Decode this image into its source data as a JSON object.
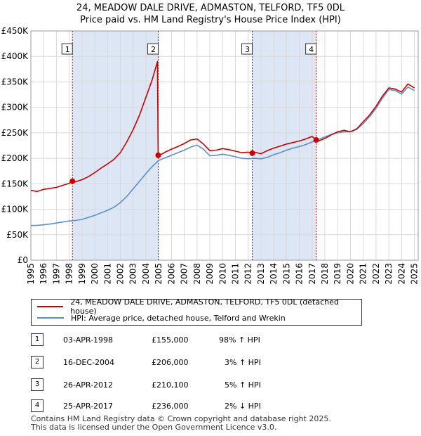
{
  "title_line1": "24, MEADOW DALE DRIVE, ADMASTON, TELFORD, TF5 0DL",
  "title_line2": "Price paid vs. HM Land Registry's House Price Index (HPI)",
  "colors": {
    "property": "#cc0000",
    "hpi": "#5b8fd0",
    "shade": "#dde6f5",
    "grid": "#d9d9d9",
    "vline": "#cc0000"
  },
  "chart_data": {
    "type": "line",
    "title": "Price paid vs. HM Land Registry's House Price Index (HPI)",
    "xlabel": "",
    "ylabel": "",
    "xlim": [
      1995,
      2025.3
    ],
    "ylim": [
      0,
      450000
    ],
    "x_ticks": [
      1995,
      1996,
      1997,
      1998,
      1999,
      2000,
      2001,
      2002,
      2003,
      2004,
      2005,
      2006,
      2007,
      2008,
      2009,
      2010,
      2011,
      2012,
      2013,
      2014,
      2015,
      2016,
      2017,
      2018,
      2019,
      2020,
      2021,
      2022,
      2023,
      2024,
      2025
    ],
    "y_ticks": [
      0,
      50000,
      100000,
      150000,
      200000,
      250000,
      300000,
      350000,
      400000,
      450000
    ],
    "y_tick_labels": [
      "£0",
      "£50K",
      "£100K",
      "£150K",
      "£200K",
      "£250K",
      "£300K",
      "£350K",
      "£400K",
      "£450K"
    ],
    "shaded_spans": [
      [
        1998.25,
        2004.96
      ],
      [
        2012.32,
        2017.32
      ]
    ],
    "series": [
      {
        "name": "24, MEADOW DALE DRIVE, ADMASTON, TELFORD, TF5 0DL (detached house)",
        "color": "#cc0000",
        "x": [
          1995,
          1995.5,
          1996,
          1996.5,
          1997,
          1997.5,
          1998,
          1998.25,
          1998.5,
          1999,
          1999.5,
          2000,
          2000.5,
          2001,
          2001.5,
          2002,
          2002.5,
          2003,
          2003.5,
          2004,
          2004.5,
          2004.9,
          2004.96,
          2005,
          2005.5,
          2006,
          2006.5,
          2007,
          2007.5,
          2008,
          2008.5,
          2009,
          2009.5,
          2010,
          2010.5,
          2011,
          2011.5,
          2012,
          2012.32,
          2012.5,
          2013,
          2013.5,
          2014,
          2014.5,
          2015,
          2015.5,
          2016,
          2016.5,
          2017,
          2017.32,
          2017.5,
          2018,
          2018.5,
          2019,
          2019.5,
          2020,
          2020.5,
          2021,
          2021.5,
          2022,
          2022.5,
          2023,
          2023.5,
          2024,
          2024.5,
          2025
        ],
        "y": [
          137000,
          135000,
          139000,
          141000,
          143000,
          147000,
          151000,
          155000,
          154000,
          158000,
          164000,
          172000,
          181000,
          189000,
          198000,
          211000,
          232000,
          256000,
          285000,
          320000,
          355000,
          390000,
          206000,
          205000,
          212000,
          218000,
          223000,
          229000,
          236000,
          238000,
          228000,
          215000,
          216000,
          219000,
          217000,
          214000,
          211000,
          212000,
          210100,
          212000,
          209000,
          215000,
          220000,
          224000,
          228000,
          231000,
          234000,
          238000,
          243000,
          236000,
          234000,
          239000,
          246000,
          252000,
          255000,
          252000,
          258000,
          272000,
          285000,
          302000,
          322000,
          338000,
          336000,
          330000,
          346000,
          338000
        ]
      },
      {
        "name": "HPI: Average price, detached house, Telford and Wrekin",
        "color": "#5b8fd0",
        "x": [
          1995,
          1995.5,
          1996,
          1996.5,
          1997,
          1997.5,
          1998,
          1998.5,
          1999,
          1999.5,
          2000,
          2000.5,
          2001,
          2001.5,
          2002,
          2002.5,
          2003,
          2003.5,
          2004,
          2004.5,
          2005,
          2005.5,
          2006,
          2006.5,
          2007,
          2007.5,
          2008,
          2008.5,
          2009,
          2009.5,
          2010,
          2010.5,
          2011,
          2011.5,
          2012,
          2012.5,
          2013,
          2013.5,
          2014,
          2014.5,
          2015,
          2015.5,
          2016,
          2016.5,
          2017,
          2017.5,
          2018,
          2018.5,
          2019,
          2019.5,
          2020,
          2020.5,
          2021,
          2021.5,
          2022,
          2022.5,
          2023,
          2023.5,
          2024,
          2024.5,
          2025
        ],
        "y": [
          68000,
          68500,
          69500,
          71000,
          73000,
          75000,
          77000,
          78000,
          80000,
          84000,
          88000,
          93000,
          98000,
          104000,
          113000,
          125000,
          140000,
          155000,
          170000,
          184000,
          196000,
          201000,
          206000,
          211000,
          216000,
          222000,
          226000,
          218000,
          205000,
          206000,
          208000,
          206000,
          203000,
          200000,
          199000,
          200000,
          199000,
          202000,
          207000,
          211000,
          216000,
          220000,
          223000,
          227000,
          232000,
          237000,
          242000,
          247000,
          250000,
          252000,
          252000,
          257000,
          268000,
          282000,
          298000,
          318000,
          335000,
          333000,
          326000,
          340000,
          333000
        ]
      }
    ],
    "sale_points": [
      {
        "x": 1998.25,
        "y": 155000
      },
      {
        "x": 2004.96,
        "y": 206000
      },
      {
        "x": 2012.32,
        "y": 210100
      },
      {
        "x": 2017.32,
        "y": 236000
      }
    ],
    "annotations": [
      {
        "label": "1",
        "x": 1998.25
      },
      {
        "label": "2",
        "x": 2004.96
      },
      {
        "label": "3",
        "x": 2012.32
      },
      {
        "label": "4",
        "x": 2017.32
      }
    ]
  },
  "legend": {
    "property_label": "24, MEADOW DALE DRIVE, ADMASTON, TELFORD, TF5 0DL (detached house)",
    "hpi_label": "HPI: Average price, detached house, Telford and Wrekin"
  },
  "transactions": [
    {
      "num": "1",
      "date": "03-APR-1998",
      "price": "£155,000",
      "hpi": "98% ↑ HPI"
    },
    {
      "num": "2",
      "date": "16-DEC-2004",
      "price": "£206,000",
      "hpi": "3% ↑ HPI"
    },
    {
      "num": "3",
      "date": "26-APR-2012",
      "price": "£210,100",
      "hpi": "5% ↑ HPI"
    },
    {
      "num": "4",
      "date": "25-APR-2017",
      "price": "£236,000",
      "hpi": "2% ↓ HPI"
    }
  ],
  "footer_line1": "Contains HM Land Registry data © Crown copyright and database right 2025.",
  "footer_line2": "This data is licensed under the Open Government Licence v3.0."
}
